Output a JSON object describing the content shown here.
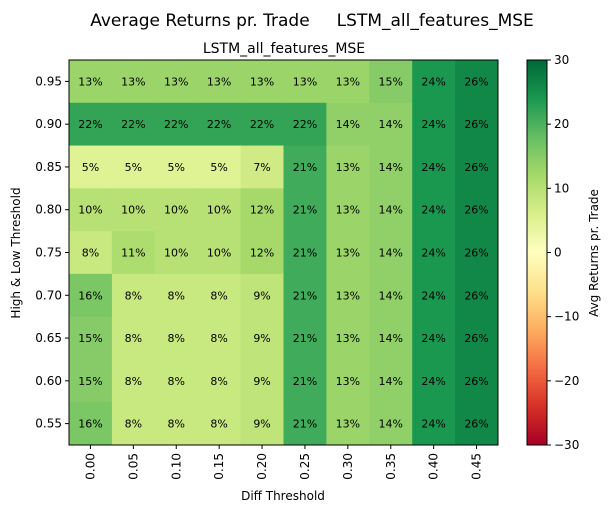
{
  "chart_data": {
    "type": "heatmap",
    "suptitle": "Average Returns pr. Trade     LSTM_all_features_MSE",
    "title": "LSTM_all_features_MSE",
    "xlabel": "Diff Threshold",
    "ylabel": "High & Low Threshold",
    "colorbar_label": "Avg Returns pr. Trade",
    "colormap": "RdYlGn",
    "vmin": -30,
    "vmax": 30,
    "colorbar_ticks": [
      "30",
      "20",
      "10",
      "0",
      "−10",
      "−20",
      "−30"
    ],
    "x": [
      "0.00",
      "0.05",
      "0.10",
      "0.15",
      "0.20",
      "0.25",
      "0.30",
      "0.35",
      "0.40",
      "0.45"
    ],
    "y": [
      "0.95",
      "0.90",
      "0.85",
      "0.80",
      "0.75",
      "0.70",
      "0.65",
      "0.60",
      "0.55"
    ],
    "values": [
      [
        13,
        13,
        13,
        13,
        13,
        13,
        13,
        15,
        24,
        26
      ],
      [
        22,
        22,
        22,
        22,
        22,
        22,
        14,
        14,
        24,
        26
      ],
      [
        5,
        5,
        5,
        5,
        7,
        21,
        13,
        14,
        24,
        26
      ],
      [
        10,
        10,
        10,
        10,
        12,
        21,
        13,
        14,
        24,
        26
      ],
      [
        8,
        11,
        10,
        10,
        12,
        21,
        13,
        14,
        24,
        26
      ],
      [
        16,
        8,
        8,
        8,
        9,
        21,
        13,
        14,
        24,
        26
      ],
      [
        15,
        8,
        8,
        8,
        9,
        21,
        13,
        14,
        24,
        26
      ],
      [
        15,
        8,
        8,
        8,
        9,
        21,
        13,
        14,
        24,
        26
      ],
      [
        16,
        8,
        8,
        8,
        9,
        21,
        13,
        14,
        24,
        26
      ]
    ],
    "value_suffix": "%"
  }
}
